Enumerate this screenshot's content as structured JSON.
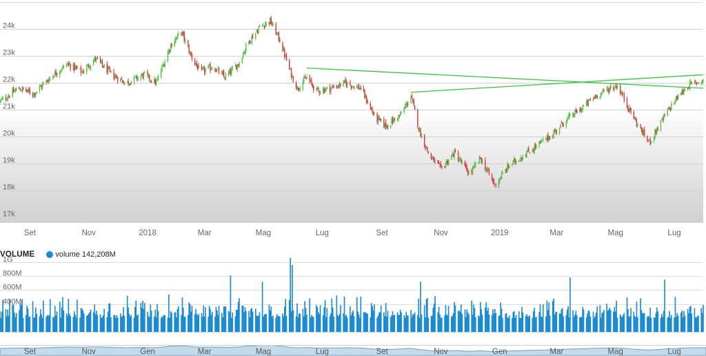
{
  "colors": {
    "up": "#4cc03f",
    "down": "#d8323a",
    "trendline": "#3cc43c",
    "volume": "#1b8ad1",
    "navigator": "#8fb8d4",
    "grid": "#d2d2d2"
  },
  "volume_panel": {
    "title": "VOLUME",
    "series_name": "volume",
    "series_value": "142,208M"
  },
  "chart_data": [
    {
      "type": "candlestick",
      "title": "",
      "y_axis": {
        "min": 16800,
        "max": 25000,
        "ticks": [
          17000,
          18000,
          19000,
          20000,
          21000,
          22000,
          23000,
          24000
        ],
        "tick_labels": [
          "17k",
          "18k",
          "19k",
          "20k",
          "21k",
          "22k",
          "23k",
          "24k"
        ]
      },
      "x_axis": {
        "start": "2017-08-01",
        "end": "2019-07-31",
        "tick_dates": [
          "2017-09-01",
          "2017-11-01",
          "2018-01-01",
          "2018-03-01",
          "2018-05-01",
          "2018-07-01",
          "2018-09-01",
          "2018-11-01",
          "2019-01-01",
          "2019-03-01",
          "2019-05-01",
          "2019-07-01"
        ],
        "tick_labels": [
          "Set",
          "Nov",
          "2018",
          "Mar",
          "Mag",
          "Lug",
          "Set",
          "Nov",
          "2019",
          "Mar",
          "Mag",
          "Lug"
        ]
      },
      "close_path": [
        [
          "2017-08-01",
          21300
        ],
        [
          "2017-08-20",
          21800
        ],
        [
          "2017-09-05",
          21600
        ],
        [
          "2017-09-25",
          22300
        ],
        [
          "2017-10-10",
          22700
        ],
        [
          "2017-10-25",
          22400
        ],
        [
          "2017-11-08",
          22900
        ],
        [
          "2017-11-25",
          22300
        ],
        [
          "2017-12-10",
          22000
        ],
        [
          "2017-12-28",
          22300
        ],
        [
          "2018-01-10",
          22000
        ],
        [
          "2018-01-25",
          23400
        ],
        [
          "2018-02-05",
          23900
        ],
        [
          "2018-02-15",
          23000
        ],
        [
          "2018-02-25",
          22400
        ],
        [
          "2018-03-10",
          22600
        ],
        [
          "2018-03-22",
          22200
        ],
        [
          "2018-04-05",
          22700
        ],
        [
          "2018-04-15",
          23500
        ],
        [
          "2018-04-28",
          24100
        ],
        [
          "2018-05-08",
          24300
        ],
        [
          "2018-05-18",
          23600
        ],
        [
          "2018-05-28",
          22500
        ],
        [
          "2018-06-05",
          21800
        ],
        [
          "2018-06-15",
          22200
        ],
        [
          "2018-06-25",
          21700
        ],
        [
          "2018-07-10",
          21800
        ],
        [
          "2018-07-25",
          22000
        ],
        [
          "2018-08-10",
          21800
        ],
        [
          "2018-08-25",
          20700
        ],
        [
          "2018-09-05",
          20400
        ],
        [
          "2018-09-20",
          20800
        ],
        [
          "2018-10-01",
          21500
        ],
        [
          "2018-10-10",
          20200
        ],
        [
          "2018-10-20",
          19300
        ],
        [
          "2018-11-01",
          18800
        ],
        [
          "2018-11-15",
          19400
        ],
        [
          "2018-12-01",
          18600
        ],
        [
          "2018-12-12",
          19200
        ],
        [
          "2018-12-27",
          18200
        ],
        [
          "2019-01-10",
          18900
        ],
        [
          "2019-01-25",
          19300
        ],
        [
          "2019-02-10",
          19700
        ],
        [
          "2019-02-25",
          20100
        ],
        [
          "2019-03-10",
          20600
        ],
        [
          "2019-03-25",
          21000
        ],
        [
          "2019-04-10",
          21500
        ],
        [
          "2019-04-25",
          21800
        ],
        [
          "2019-05-03",
          21900
        ],
        [
          "2019-05-13",
          21200
        ],
        [
          "2019-05-23",
          20500
        ],
        [
          "2019-06-01",
          20000
        ],
        [
          "2019-06-05",
          19800
        ],
        [
          "2019-06-15",
          20400
        ],
        [
          "2019-06-25",
          21000
        ],
        [
          "2019-07-05",
          21500
        ],
        [
          "2019-07-15",
          21900
        ],
        [
          "2019-07-31",
          22100
        ]
      ],
      "trendlines": [
        {
          "from": [
            "2018-06-15",
            22550
          ],
          "to": [
            "2019-07-31",
            21800
          ]
        },
        {
          "from": [
            "2018-10-01",
            21650
          ],
          "to": [
            "2019-07-31",
            22300
          ]
        }
      ]
    },
    {
      "type": "bar",
      "name": "volume",
      "y_axis": {
        "min": 0,
        "max": 1000000000,
        "ticks": [
          400000000,
          600000000,
          800000000,
          1000000000
        ],
        "tick_labels": [
          "400M",
          "600M",
          "800M",
          "1G"
        ]
      },
      "typical_range_M": [
        200,
        450
      ],
      "spikes": [
        {
          "date": "2018-03-28",
          "value_M": 810
        },
        {
          "date": "2018-04-30",
          "value_M": 720
        },
        {
          "date": "2018-05-29",
          "value_M": 1060
        },
        {
          "date": "2018-05-31",
          "value_M": 960
        },
        {
          "date": "2018-10-11",
          "value_M": 720
        },
        {
          "date": "2019-03-15",
          "value_M": 780
        },
        {
          "date": "2019-06-21",
          "value_M": 750
        }
      ]
    },
    {
      "type": "area",
      "name": "navigator",
      "x_axis": {
        "tick_dates": [
          "2017-09-01",
          "2017-11-01",
          "2018-01-01",
          "2018-03-01",
          "2018-05-01",
          "2018-07-01",
          "2018-09-01",
          "2018-11-01",
          "2019-01-01",
          "2019-03-01",
          "2019-05-01",
          "2019-07-01"
        ],
        "tick_labels": [
          "Set",
          "Nov",
          "Gen",
          "Mar",
          "Mag",
          "Lug",
          "Set",
          "Nov",
          "Gen",
          "Mar",
          "Mag",
          "Lug"
        ]
      }
    }
  ]
}
